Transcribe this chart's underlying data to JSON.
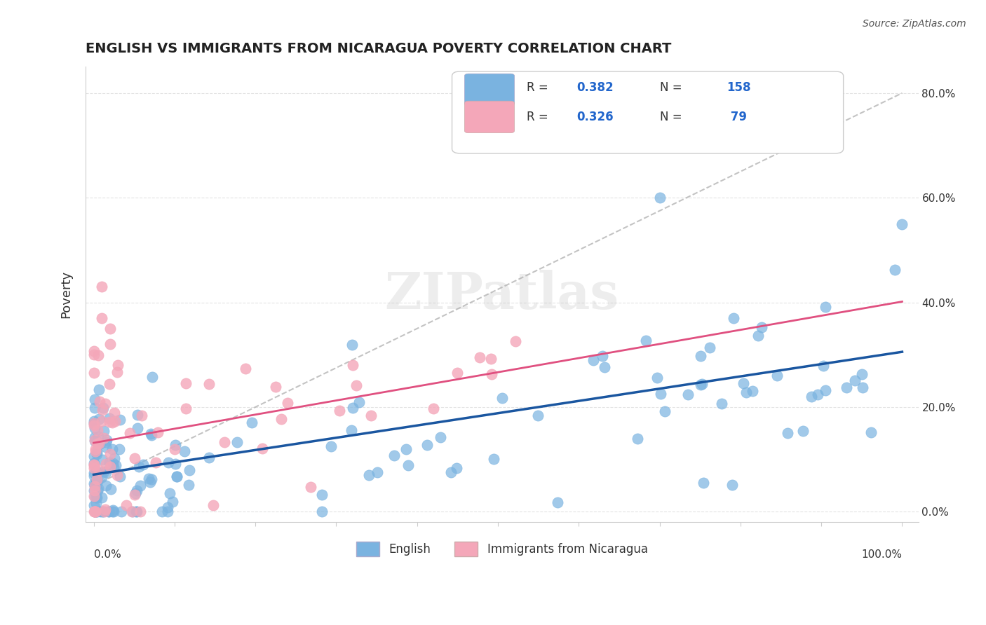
{
  "title": "ENGLISH VS IMMIGRANTS FROM NICARAGUA POVERTY CORRELATION CHART",
  "source": "Source: ZipAtlas.com",
  "ylabel": "Poverty",
  "right_yticklabels": [
    "0.0%",
    "20.0%",
    "40.0%",
    "60.0%",
    "80.0%"
  ],
  "blue_color": "#7ab3e0",
  "pink_color": "#f4a7b9",
  "blue_line_color": "#1a56a0",
  "pink_line_color": "#e05080",
  "watermark": "ZIPatlas",
  "background_color": "#ffffff",
  "grid_color": "#dddddd"
}
